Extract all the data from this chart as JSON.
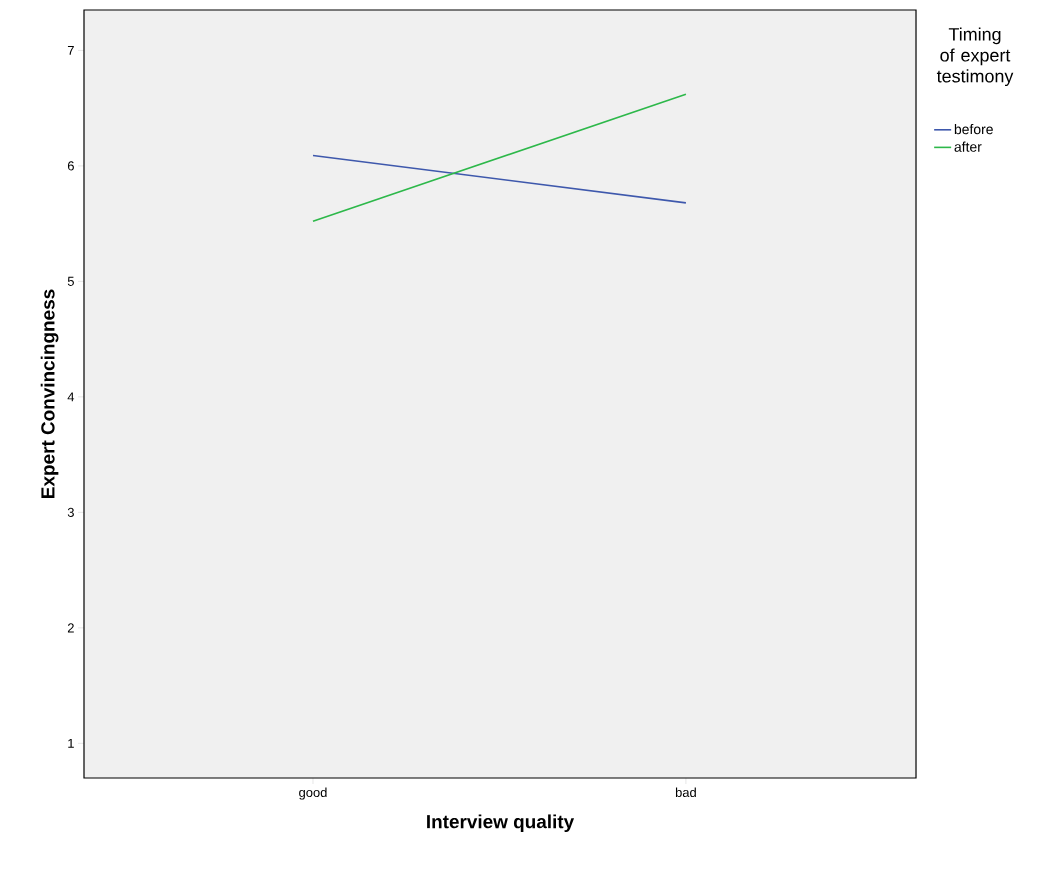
{
  "chart_data": {
    "type": "line",
    "xlabel": "Interview quality",
    "ylabel": "Expert Convincingness",
    "legend_title": "Timing of expert testimony",
    "categories": [
      "good",
      "bad"
    ],
    "series": [
      {
        "name": "before",
        "color": "#3e58ac",
        "values": [
          6.09,
          5.68
        ]
      },
      {
        "name": "after",
        "color": "#2db84a",
        "values": [
          5.52,
          6.62
        ]
      }
    ],
    "ylim": [
      0.7,
      7.35
    ],
    "yticks": [
      1,
      2,
      3,
      4,
      5,
      6,
      7
    ],
    "legend": "right",
    "marker": "none",
    "line_style": "solid"
  }
}
